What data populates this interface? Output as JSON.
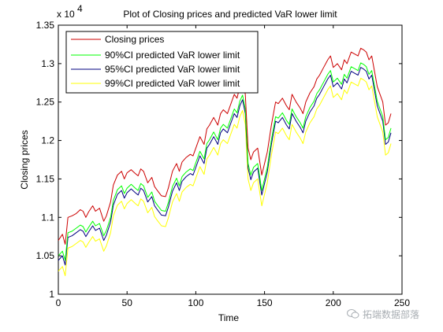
{
  "chart_data": {
    "type": "line",
    "title": "Plot of Closing prices and predicted VaR lower limit",
    "xlabel": "Time",
    "ylabel": "Closing prices",
    "y_exponent_label": "x 10",
    "y_exponent_power": "4",
    "xlim": [
      0,
      250
    ],
    "ylim": [
      10000,
      13500
    ],
    "x_ticks": [
      0,
      50,
      100,
      150,
      200,
      250
    ],
    "y_ticks": [
      10000,
      10500,
      11000,
      11500,
      12000,
      12500,
      13000,
      13500
    ],
    "x_tick_labels": [
      "0",
      "50",
      "100",
      "150",
      "200",
      "250"
    ],
    "y_tick_labels": [
      "1",
      "1.05",
      "1.1",
      "1.15",
      "1.2",
      "1.25",
      "1.3",
      "1.35"
    ],
    "legend_position": "top-left",
    "grid": false,
    "x": [
      0,
      3,
      5,
      7,
      10,
      13,
      16,
      18,
      20,
      22,
      25,
      27,
      30,
      33,
      35,
      38,
      40,
      43,
      46,
      48,
      50,
      53,
      56,
      58,
      60,
      62,
      65,
      68,
      70,
      72,
      75,
      78,
      80,
      83,
      86,
      88,
      90,
      93,
      96,
      98,
      100,
      103,
      106,
      108,
      110,
      113,
      116,
      118,
      120,
      123,
      126,
      128,
      130,
      132,
      134,
      136,
      138,
      140,
      142,
      145,
      148,
      150,
      152,
      155,
      158,
      160,
      163,
      166,
      168,
      170,
      173,
      176,
      178,
      180,
      183,
      186,
      188,
      190,
      193,
      196,
      198,
      200,
      203,
      206,
      208,
      210,
      213,
      216,
      218,
      220,
      222,
      224,
      226,
      228,
      230,
      232,
      234,
      236,
      238,
      240,
      242
    ],
    "series": [
      {
        "name": "Closing prices",
        "color": "#cc0000",
        "values": [
          10700,
          10780,
          10650,
          11000,
          11020,
          11050,
          11100,
          11080,
          11000,
          11070,
          11150,
          11080,
          11120,
          10950,
          11020,
          11200,
          11420,
          11550,
          11600,
          11500,
          11580,
          11620,
          11570,
          11540,
          11630,
          11600,
          11450,
          11520,
          11400,
          11350,
          11280,
          11270,
          11380,
          11600,
          11700,
          11600,
          11720,
          11780,
          11820,
          11800,
          11900,
          12050,
          11950,
          12150,
          12200,
          12300,
          12200,
          12350,
          12400,
          12350,
          12500,
          12600,
          12550,
          12700,
          12780,
          12600,
          11900,
          11750,
          11850,
          11900,
          11550,
          11700,
          11850,
          12200,
          12500,
          12480,
          12550,
          12450,
          12400,
          12600,
          12500,
          12420,
          12350,
          12500,
          12620,
          12700,
          12800,
          12850,
          12950,
          13050,
          13100,
          12950,
          13000,
          12920,
          13050,
          13000,
          13150,
          13120,
          13100,
          13200,
          13180,
          13150,
          13050,
          13100,
          12900,
          12700,
          12600,
          12500,
          12200,
          12230,
          12350
        ]
      },
      {
        "name": "90%CI predicted VaR lower limit",
        "color": "#00ff00",
        "values": [
          10500,
          10560,
          10440,
          10800,
          10820,
          10860,
          10900,
          10880,
          10810,
          10870,
          10950,
          10890,
          10920,
          10760,
          10830,
          11000,
          11220,
          11360,
          11410,
          11310,
          11380,
          11430,
          11380,
          11350,
          11440,
          11410,
          11260,
          11330,
          11210,
          11160,
          11090,
          11080,
          11190,
          11400,
          11510,
          11410,
          11530,
          11590,
          11630,
          11610,
          11710,
          11860,
          11760,
          11960,
          12010,
          12110,
          12010,
          12160,
          12210,
          12160,
          12310,
          12410,
          12360,
          12510,
          12590,
          12410,
          11700,
          11550,
          11650,
          11700,
          11350,
          11500,
          11650,
          12010,
          12310,
          12290,
          12360,
          12260,
          12210,
          12410,
          12310,
          12230,
          12160,
          12310,
          12430,
          12510,
          12610,
          12660,
          12760,
          12860,
          12910,
          12760,
          12810,
          12730,
          12860,
          12810,
          12960,
          12930,
          12910,
          13010,
          12990,
          12960,
          12860,
          12910,
          12710,
          12510,
          12410,
          12310,
          12010,
          12040,
          12160
        ]
      },
      {
        "name": "95%CI predicted VaR lower limit",
        "color": "#000080",
        "values": [
          10440,
          10500,
          10380,
          10740,
          10760,
          10800,
          10840,
          10820,
          10750,
          10810,
          10890,
          10830,
          10860,
          10700,
          10770,
          10940,
          11160,
          11300,
          11350,
          11250,
          11320,
          11370,
          11320,
          11290,
          11380,
          11350,
          11200,
          11270,
          11150,
          11100,
          11030,
          11020,
          11130,
          11340,
          11450,
          11350,
          11470,
          11530,
          11570,
          11550,
          11650,
          11800,
          11700,
          11900,
          11950,
          12050,
          11950,
          12100,
          12150,
          12100,
          12250,
          12350,
          12300,
          12450,
          12530,
          12350,
          11640,
          11490,
          11590,
          11640,
          11290,
          11440,
          11590,
          11950,
          12250,
          12230,
          12300,
          12200,
          12150,
          12350,
          12250,
          12170,
          12100,
          12250,
          12370,
          12450,
          12550,
          12600,
          12700,
          12800,
          12850,
          12700,
          12750,
          12670,
          12800,
          12750,
          12900,
          12870,
          12850,
          12950,
          12930,
          12900,
          12800,
          12850,
          12650,
          12450,
          12350,
          12250,
          11950,
          11980,
          12100
        ]
      },
      {
        "name": "99%CI predicted VaR lower limit",
        "color": "#ffff00",
        "values": [
          10300,
          10360,
          10240,
          10600,
          10620,
          10660,
          10700,
          10680,
          10610,
          10670,
          10750,
          10690,
          10720,
          10560,
          10630,
          10800,
          11020,
          11160,
          11210,
          11110,
          11180,
          11230,
          11180,
          11150,
          11240,
          11210,
          11060,
          11130,
          11010,
          10960,
          10890,
          10880,
          10990,
          11200,
          11310,
          11210,
          11330,
          11390,
          11430,
          11410,
          11510,
          11660,
          11560,
          11760,
          11810,
          11910,
          11810,
          11960,
          12010,
          11960,
          12110,
          12210,
          12160,
          12310,
          12390,
          12210,
          11500,
          11350,
          11450,
          11500,
          11150,
          11300,
          11450,
          11810,
          12110,
          12090,
          12160,
          12060,
          12010,
          12210,
          12110,
          12030,
          11960,
          12110,
          12230,
          12310,
          12410,
          12460,
          12560,
          12660,
          12710,
          12560,
          12610,
          12530,
          12660,
          12610,
          12760,
          12730,
          12710,
          12810,
          12790,
          12760,
          12660,
          12710,
          12510,
          12310,
          12210,
          12110,
          11810,
          11840,
          11960
        ]
      }
    ]
  },
  "watermark": {
    "text": "拓端数据部落",
    "icon": "wechat-icon"
  }
}
